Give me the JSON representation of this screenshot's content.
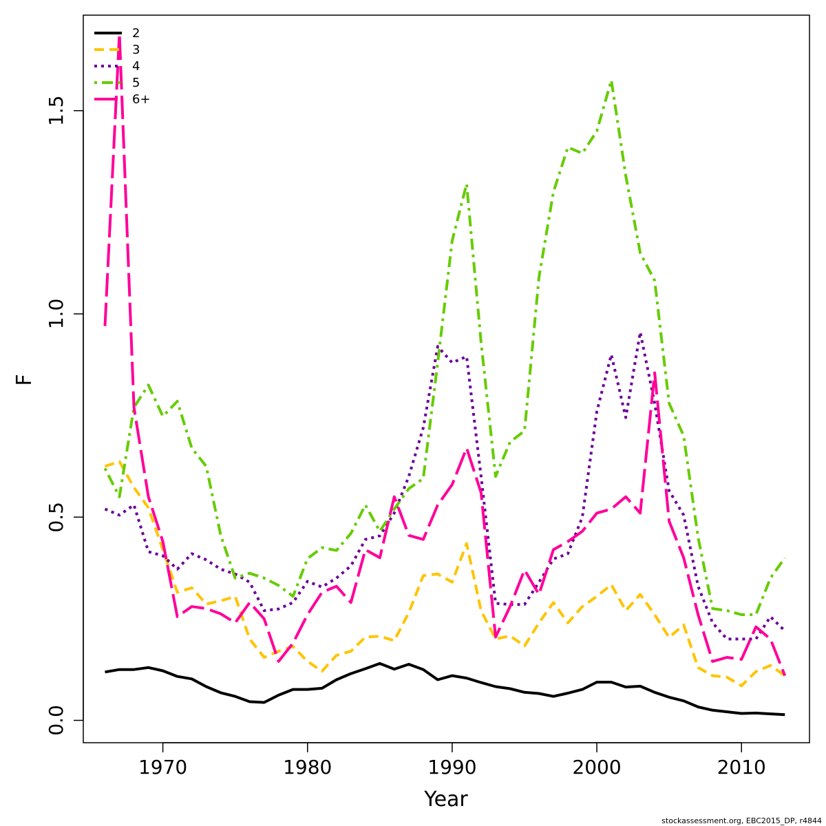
{
  "chart_data": {
    "type": "line",
    "xlabel": "Year",
    "ylabel": "F",
    "xlim": [
      1964.5,
      2014.7
    ],
    "ylim": [
      -0.055,
      1.735
    ],
    "x_ticks": [
      1970,
      1980,
      1990,
      2000,
      2010
    ],
    "y_ticks": [
      0.0,
      0.5,
      1.0,
      1.5
    ],
    "x_tick_labels": [
      "1970",
      "1980",
      "1990",
      "2000",
      "2010"
    ],
    "y_tick_labels": [
      "0.0",
      "0.5",
      "1.0",
      "1.5"
    ],
    "legend_position": "top-left",
    "grid": false,
    "x": [
      1966,
      1967,
      1968,
      1969,
      1970,
      1971,
      1972,
      1973,
      1974,
      1975,
      1976,
      1977,
      1978,
      1979,
      1980,
      1981,
      1982,
      1983,
      1984,
      1985,
      1986,
      1987,
      1988,
      1989,
      1990,
      1991,
      1992,
      1993,
      1994,
      1995,
      1996,
      1997,
      1998,
      1999,
      2000,
      2001,
      2002,
      2003,
      2004,
      2005,
      2006,
      2007,
      2008,
      2009,
      2010,
      2011,
      2012,
      2013
    ],
    "series": [
      {
        "name": "2",
        "color": "#000000",
        "dash": "solid",
        "values": [
          0.119,
          0.125,
          0.125,
          0.13,
          0.122,
          0.108,
          0.102,
          0.083,
          0.068,
          0.059,
          0.046,
          0.044,
          0.062,
          0.076,
          0.076,
          0.079,
          0.1,
          0.115,
          0.127,
          0.14,
          0.126,
          0.138,
          0.125,
          0.1,
          0.11,
          0.104,
          0.093,
          0.083,
          0.078,
          0.069,
          0.066,
          0.059,
          0.067,
          0.076,
          0.094,
          0.094,
          0.082,
          0.084,
          0.069,
          0.057,
          0.048,
          0.033,
          0.025,
          0.021,
          0.017,
          0.018,
          0.016,
          0.014
        ]
      },
      {
        "name": "3",
        "color": "#ffc400",
        "dash": "dashed",
        "values": [
          0.625,
          0.637,
          0.573,
          0.523,
          0.42,
          0.315,
          0.326,
          0.286,
          0.294,
          0.305,
          0.2,
          0.155,
          0.17,
          0.182,
          0.145,
          0.121,
          0.16,
          0.17,
          0.205,
          0.207,
          0.196,
          0.265,
          0.356,
          0.36,
          0.34,
          0.435,
          0.27,
          0.2,
          0.208,
          0.183,
          0.24,
          0.29,
          0.24,
          0.28,
          0.305,
          0.334,
          0.27,
          0.31,
          0.26,
          0.204,
          0.235,
          0.13,
          0.11,
          0.106,
          0.085,
          0.12,
          0.135,
          0.11
        ]
      },
      {
        "name": "4",
        "color": "#6a0096",
        "dash": "dotted",
        "values": [
          0.52,
          0.505,
          0.53,
          0.415,
          0.405,
          0.372,
          0.41,
          0.395,
          0.372,
          0.36,
          0.34,
          0.27,
          0.274,
          0.29,
          0.342,
          0.328,
          0.35,
          0.38,
          0.445,
          0.454,
          0.51,
          0.6,
          0.72,
          0.92,
          0.88,
          0.895,
          0.6,
          0.288,
          0.285,
          0.285,
          0.34,
          0.397,
          0.41,
          0.5,
          0.76,
          0.9,
          0.745,
          0.955,
          0.78,
          0.565,
          0.505,
          0.33,
          0.24,
          0.2,
          0.2,
          0.2,
          0.255,
          0.22
        ]
      },
      {
        "name": "5",
        "color": "#66cc00",
        "dash": "dashdot",
        "values": [
          0.62,
          0.55,
          0.77,
          0.825,
          0.748,
          0.785,
          0.67,
          0.625,
          0.455,
          0.35,
          0.362,
          0.35,
          0.332,
          0.305,
          0.398,
          0.425,
          0.418,
          0.46,
          0.53,
          0.465,
          0.52,
          0.57,
          0.595,
          0.88,
          1.18,
          1.32,
          0.93,
          0.6,
          0.685,
          0.712,
          1.09,
          1.3,
          1.41,
          1.395,
          1.45,
          1.575,
          1.34,
          1.15,
          1.082,
          0.78,
          0.7,
          0.45,
          0.275,
          0.27,
          0.26,
          0.26,
          0.35,
          0.4
        ]
      },
      {
        "name": "6+",
        "color": "#ff0099",
        "dash": "longdash",
        "values": [
          0.97,
          1.69,
          0.77,
          0.55,
          0.44,
          0.255,
          0.28,
          0.275,
          0.262,
          0.24,
          0.29,
          0.25,
          0.145,
          0.19,
          0.26,
          0.315,
          0.33,
          0.29,
          0.42,
          0.4,
          0.55,
          0.455,
          0.445,
          0.53,
          0.58,
          0.67,
          0.56,
          0.205,
          0.28,
          0.37,
          0.31,
          0.42,
          0.44,
          0.465,
          0.51,
          0.52,
          0.55,
          0.51,
          0.855,
          0.49,
          0.4,
          0.26,
          0.145,
          0.155,
          0.15,
          0.23,
          0.2,
          0.11
        ]
      }
    ]
  },
  "footer": "stockassessment.org, EBC2015_DP, r4844"
}
